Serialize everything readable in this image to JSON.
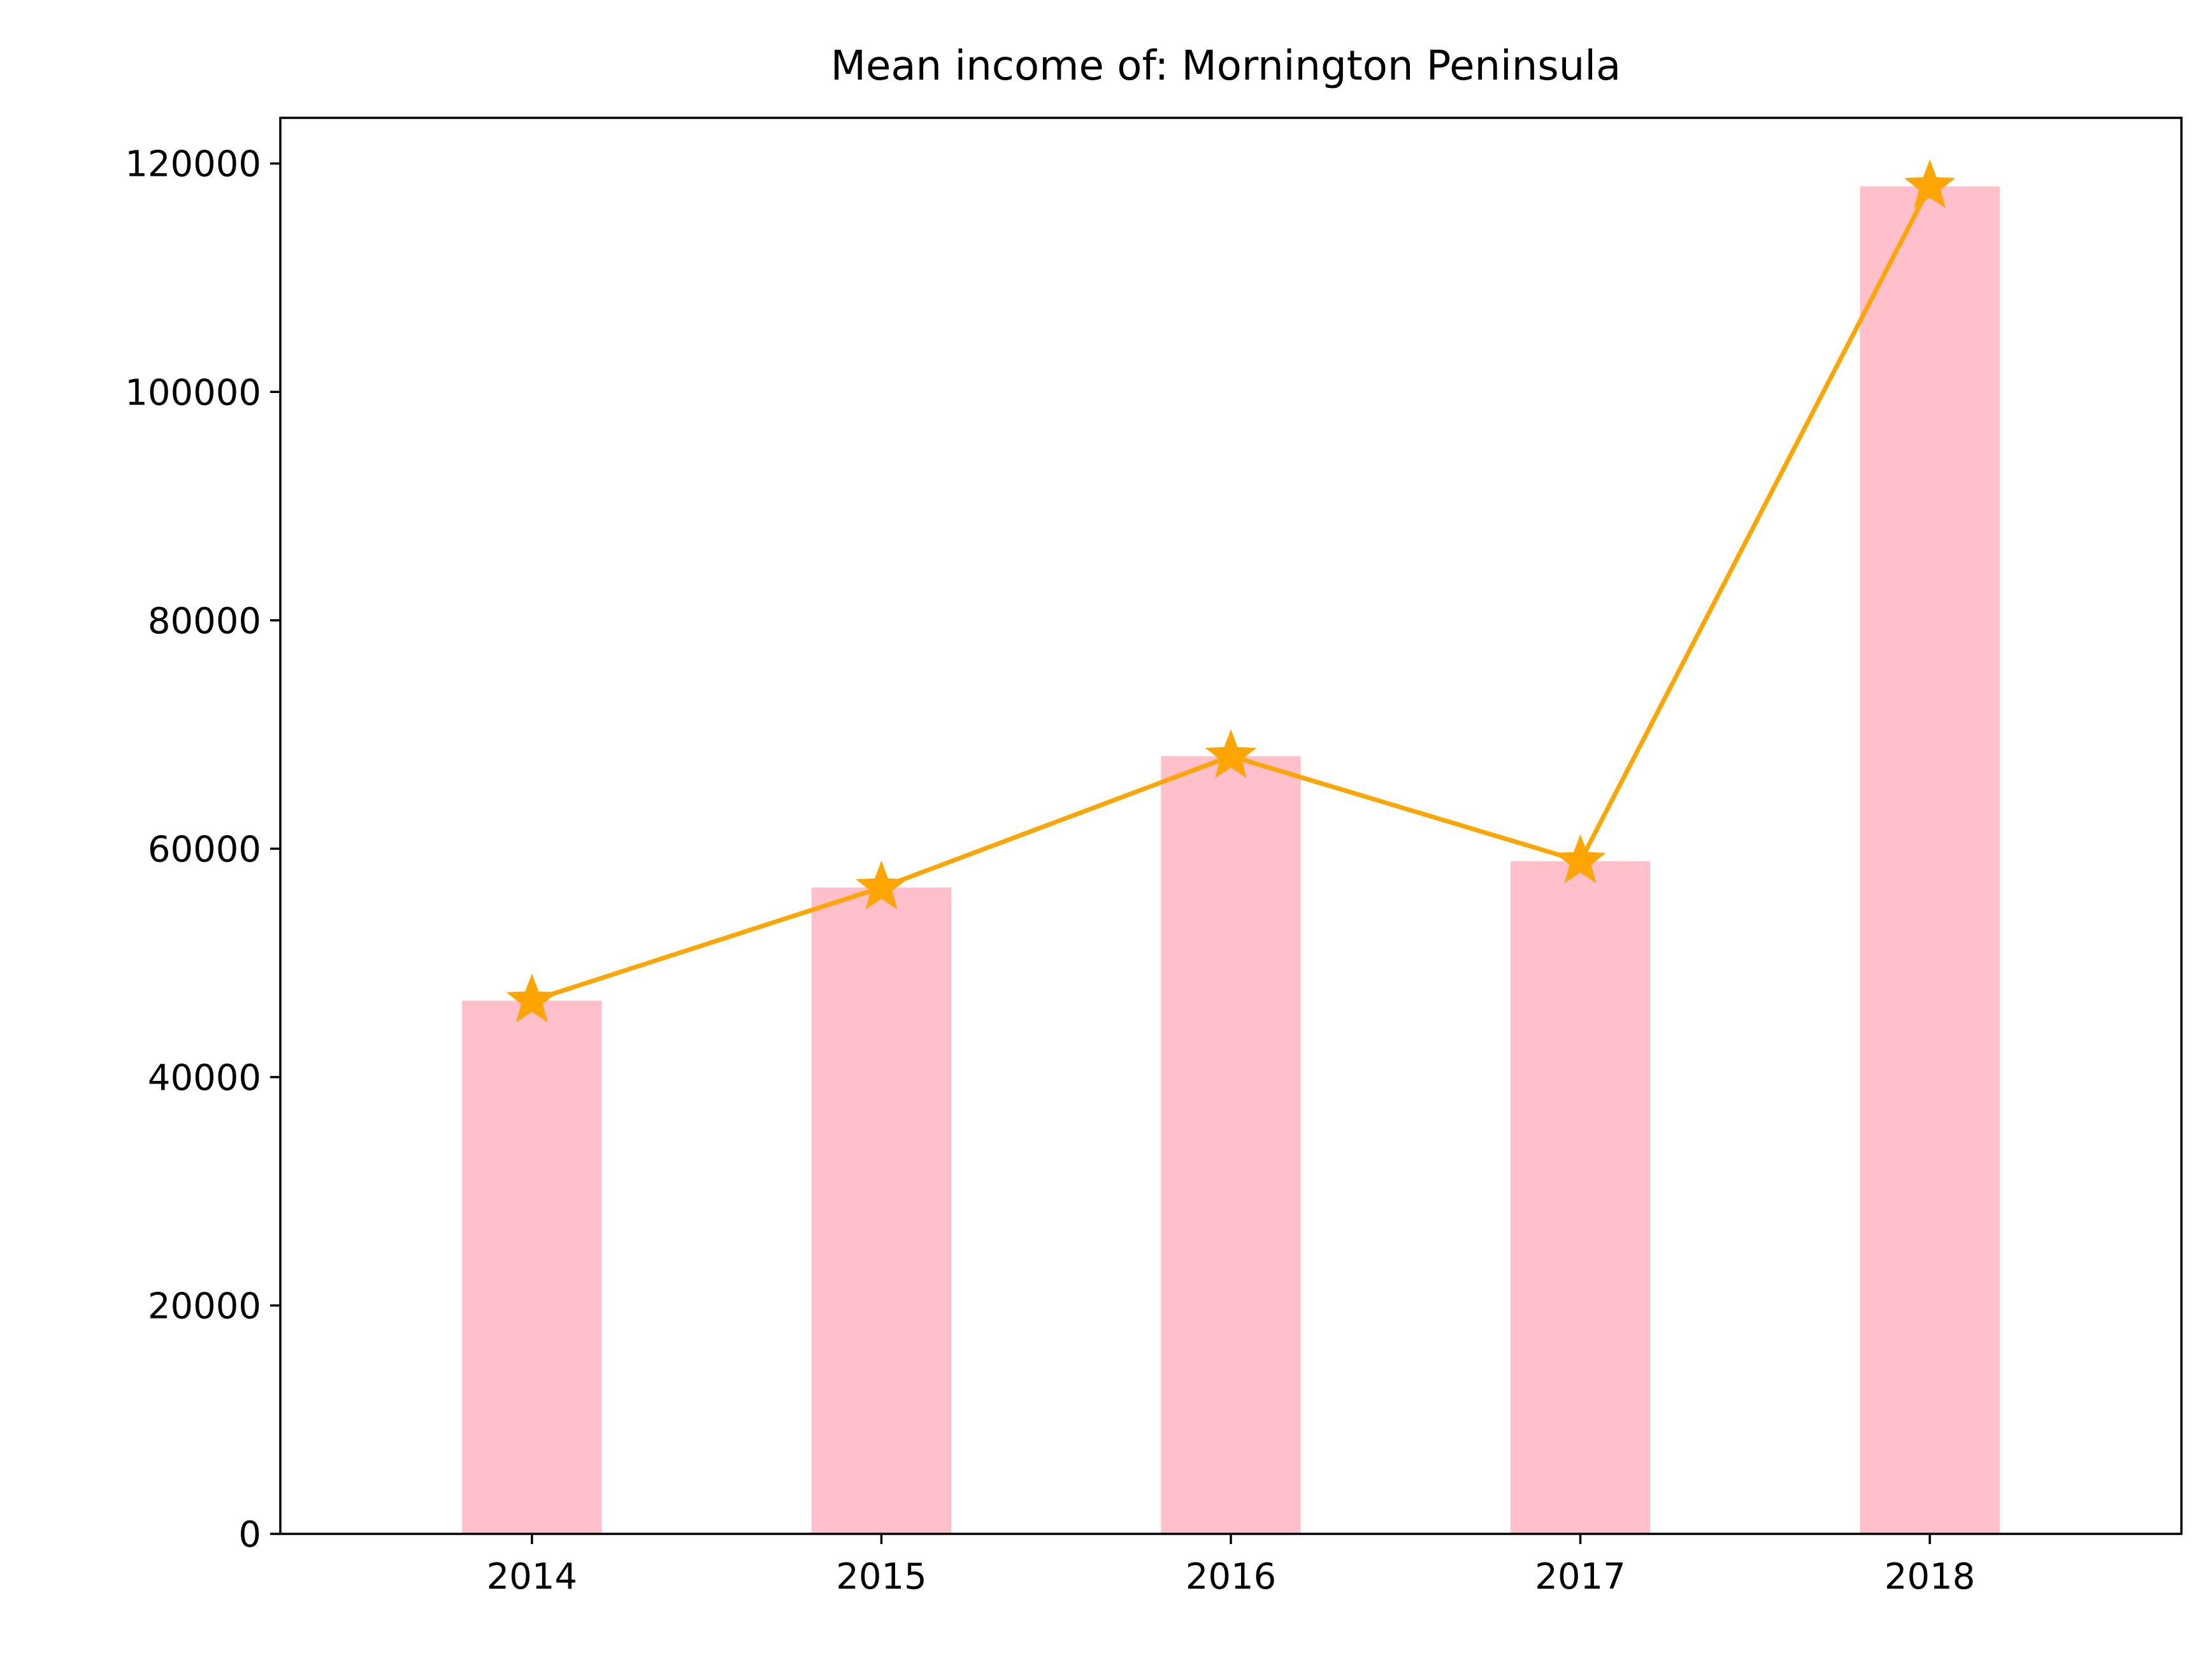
{
  "chart_data": {
    "type": "bar",
    "title": "Mean income of: Mornington Peninsula",
    "xlabel": "",
    "ylabel": "",
    "categories": [
      "2014",
      "2015",
      "2016",
      "2017",
      "2018"
    ],
    "series": [
      {
        "kind": "bar",
        "values": [
          46700,
          56600,
          68100,
          58900,
          118000
        ],
        "color": "#FFC0CB"
      },
      {
        "kind": "line",
        "marker": "star",
        "values": [
          46700,
          56600,
          68100,
          58900,
          118000
        ],
        "color": "#FFA500"
      }
    ],
    "ylim": [
      0,
      124000
    ],
    "yticks": [
      0,
      20000,
      40000,
      60000,
      80000,
      100000,
      120000
    ],
    "ytick_labels": [
      "0",
      "20000",
      "40000",
      "60000",
      "80000",
      "100000",
      "120000"
    ],
    "grid": false,
    "legend": "none"
  }
}
